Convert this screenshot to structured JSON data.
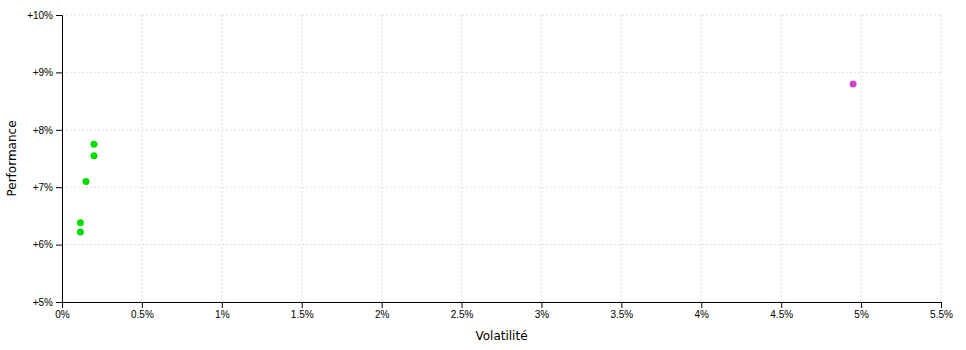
{
  "chart_data": {
    "type": "scatter",
    "xlabel": "Volatilité",
    "ylabel": "Performance",
    "xlim": [
      0,
      0.055
    ],
    "ylim": [
      0.05,
      0.1
    ],
    "xticks": [
      {
        "value": 0,
        "label": "0%"
      },
      {
        "value": 0.005,
        "label": "0.5%"
      },
      {
        "value": 0.01,
        "label": "1%"
      },
      {
        "value": 0.015,
        "label": "1.5%"
      },
      {
        "value": 0.02,
        "label": "2%"
      },
      {
        "value": 0.025,
        "label": "2.5%"
      },
      {
        "value": 0.03,
        "label": "3%"
      },
      {
        "value": 0.035,
        "label": "3.5%"
      },
      {
        "value": 0.04,
        "label": "4%"
      },
      {
        "value": 0.045,
        "label": "4.5%"
      },
      {
        "value": 0.05,
        "label": "5%"
      },
      {
        "value": 0.055,
        "label": "5.5%"
      }
    ],
    "yticks": [
      {
        "value": 0.05,
        "label": "+5%"
      },
      {
        "value": 0.06,
        "label": "+6%"
      },
      {
        "value": 0.07,
        "label": "+7%"
      },
      {
        "value": 0.08,
        "label": "+8%"
      },
      {
        "value": 0.09,
        "label": "+9%"
      },
      {
        "value": 0.1,
        "label": "+10%"
      }
    ],
    "grid": true,
    "series": [
      {
        "color": "#00dd00",
        "x": [
          0.002,
          0.002,
          0.0015,
          0.00115,
          0.00115
        ],
        "values": [
          0.0775,
          0.0755,
          0.071,
          0.0638,
          0.0622
        ]
      },
      {
        "color": "#cc44cc",
        "x": [
          0.0495
        ],
        "values": [
          0.088
        ]
      }
    ]
  }
}
